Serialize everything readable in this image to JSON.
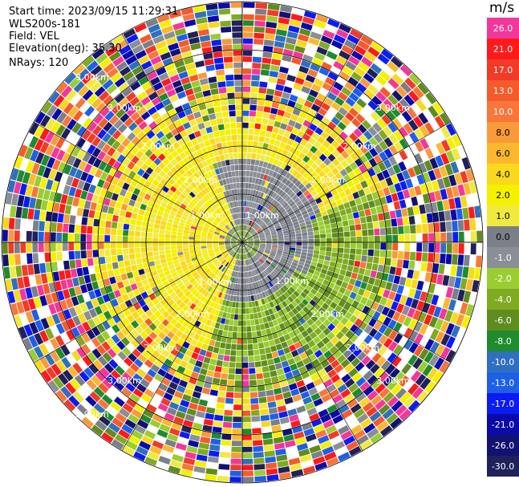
{
  "header": {
    "start_time": "Start time: 2023/09/15 11:29:31",
    "instrument": "WLS200s-181",
    "field": "Field: VEL",
    "elevation": "Elevation(deg): 35.30",
    "nrays": "NRays: 120"
  },
  "colorbar": {
    "unit": "m/s",
    "levels": [
      {
        "label": "26.0",
        "color": "#f2379a"
      },
      {
        "label": "21.0",
        "color": "#ff1a1a"
      },
      {
        "label": "17.0",
        "color": "#f23a28"
      },
      {
        "label": "13.0",
        "color": "#f55a2a"
      },
      {
        "label": "10.0",
        "color": "#f8763a"
      },
      {
        "label": "8.0",
        "color": "#f99a3a"
      },
      {
        "label": "6.0",
        "color": "#fbb82e"
      },
      {
        "label": "4.0",
        "color": "#f9d81d"
      },
      {
        "label": "2.0",
        "color": "#f4f000"
      },
      {
        "label": "1.0",
        "color": "#f0ea40"
      },
      {
        "label": "0.0",
        "color": "#7a7f88"
      },
      {
        "label": "-1.0",
        "color": "#8a8f96"
      },
      {
        "label": "-2.0",
        "color": "#9acd32"
      },
      {
        "label": "-4.0",
        "color": "#7faa22"
      },
      {
        "label": "-6.0",
        "color": "#5f8c1e"
      },
      {
        "label": "-8.0",
        "color": "#1f8a2e"
      },
      {
        "label": "-10.0",
        "color": "#2f6fc0"
      },
      {
        "label": "-13.0",
        "color": "#1e5fe8"
      },
      {
        "label": "-17.0",
        "color": "#0b1cf0"
      },
      {
        "label": "-21.0",
        "color": "#0a0aa8"
      },
      {
        "label": "-26.0",
        "color": "#121270"
      },
      {
        "label": "-30.0",
        "color": "#20205a"
      }
    ]
  },
  "range_labels": [
    "1.00km",
    "2.00km",
    "3.00km"
  ],
  "colors": {
    "ring": "#000000",
    "spoke": "#000000",
    "label_text": "#ffffff"
  }
}
